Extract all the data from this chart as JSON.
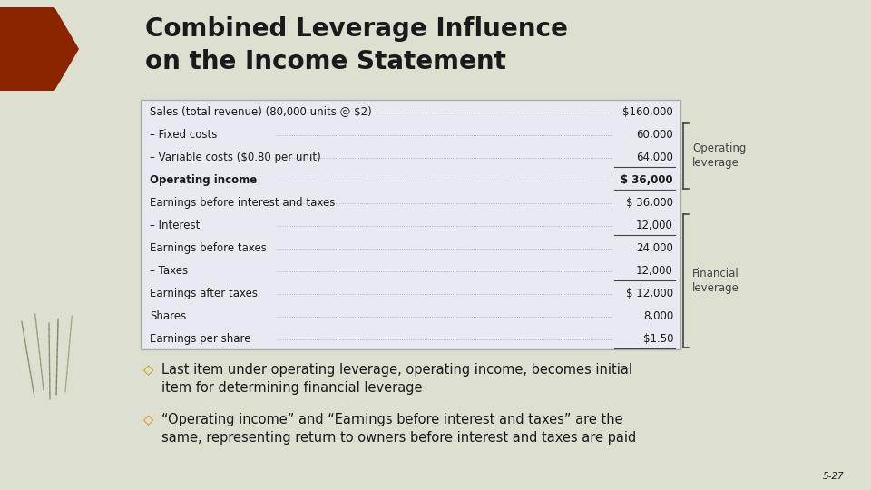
{
  "title": "Combined Leverage Influence\non the Income Statement",
  "bg_color": "#dde0d0",
  "table_bg": "#e8eaf2",
  "table_border": "#aaaaaa",
  "title_color": "#1a1a1a",
  "table_rows": [
    {
      "label": "Sales (total revenue) (80,000 units @ $2)",
      "value": "$160,000",
      "bold": false,
      "underline_below": false
    },
    {
      "label": "– Fixed costs",
      "value": "60,000",
      "bold": false,
      "underline_below": false
    },
    {
      "label": "– Variable costs ($0.80 per unit)",
      "value": "64,000",
      "bold": false,
      "underline_below": true
    },
    {
      "label": "Operating income",
      "value": "$ 36,000",
      "bold": true,
      "underline_below": true
    },
    {
      "label": "Earnings before interest and taxes",
      "value": "$ 36,000",
      "bold": false,
      "underline_below": false
    },
    {
      "label": "– Interest",
      "value": "12,000",
      "bold": false,
      "underline_below": true
    },
    {
      "label": "Earnings before taxes",
      "value": "24,000",
      "bold": false,
      "underline_below": false
    },
    {
      "label": "– Taxes",
      "value": "12,000",
      "bold": false,
      "underline_below": true
    },
    {
      "label": "Earnings after taxes",
      "value": "$ 12,000",
      "bold": false,
      "underline_below": false
    },
    {
      "label": "Shares",
      "value": "8,000",
      "bold": false,
      "underline_below": false
    },
    {
      "label": "Earnings per share",
      "value": "$1.50",
      "bold": false,
      "underline_below": true
    }
  ],
  "op_bracket_rows": [
    1,
    3
  ],
  "fin_bracket_rows": [
    5,
    10
  ],
  "operating_bracket_label": "Operating\nleverage",
  "financial_bracket_label": "Financial\nleverage",
  "bullet1_diamond": "◇",
  "bullet1": "Last item under operating leverage, operating income, becomes initial\nitem for determining financial leverage",
  "bullet2": "“Operating income” and “Earnings before interest and taxes” are the\nsame, representing return to owners before interest and taxes are paid",
  "footnote": "5-27",
  "accent_color": "#8b2500",
  "bullet_color": "#c8860b",
  "text_color": "#1a1a1a",
  "dot_color": "#888888",
  "underline_color": "#444444",
  "bracket_color": "#444444",
  "grass_colors": [
    "#8b8b6b",
    "#6b6b4b",
    "#7b7b5b",
    "#9b9b7b",
    "#7b7b5b"
  ],
  "title_fontsize": 20,
  "table_fontsize": 8.5,
  "bullet_fontsize": 10.5,
  "footnote_fontsize": 7.5
}
